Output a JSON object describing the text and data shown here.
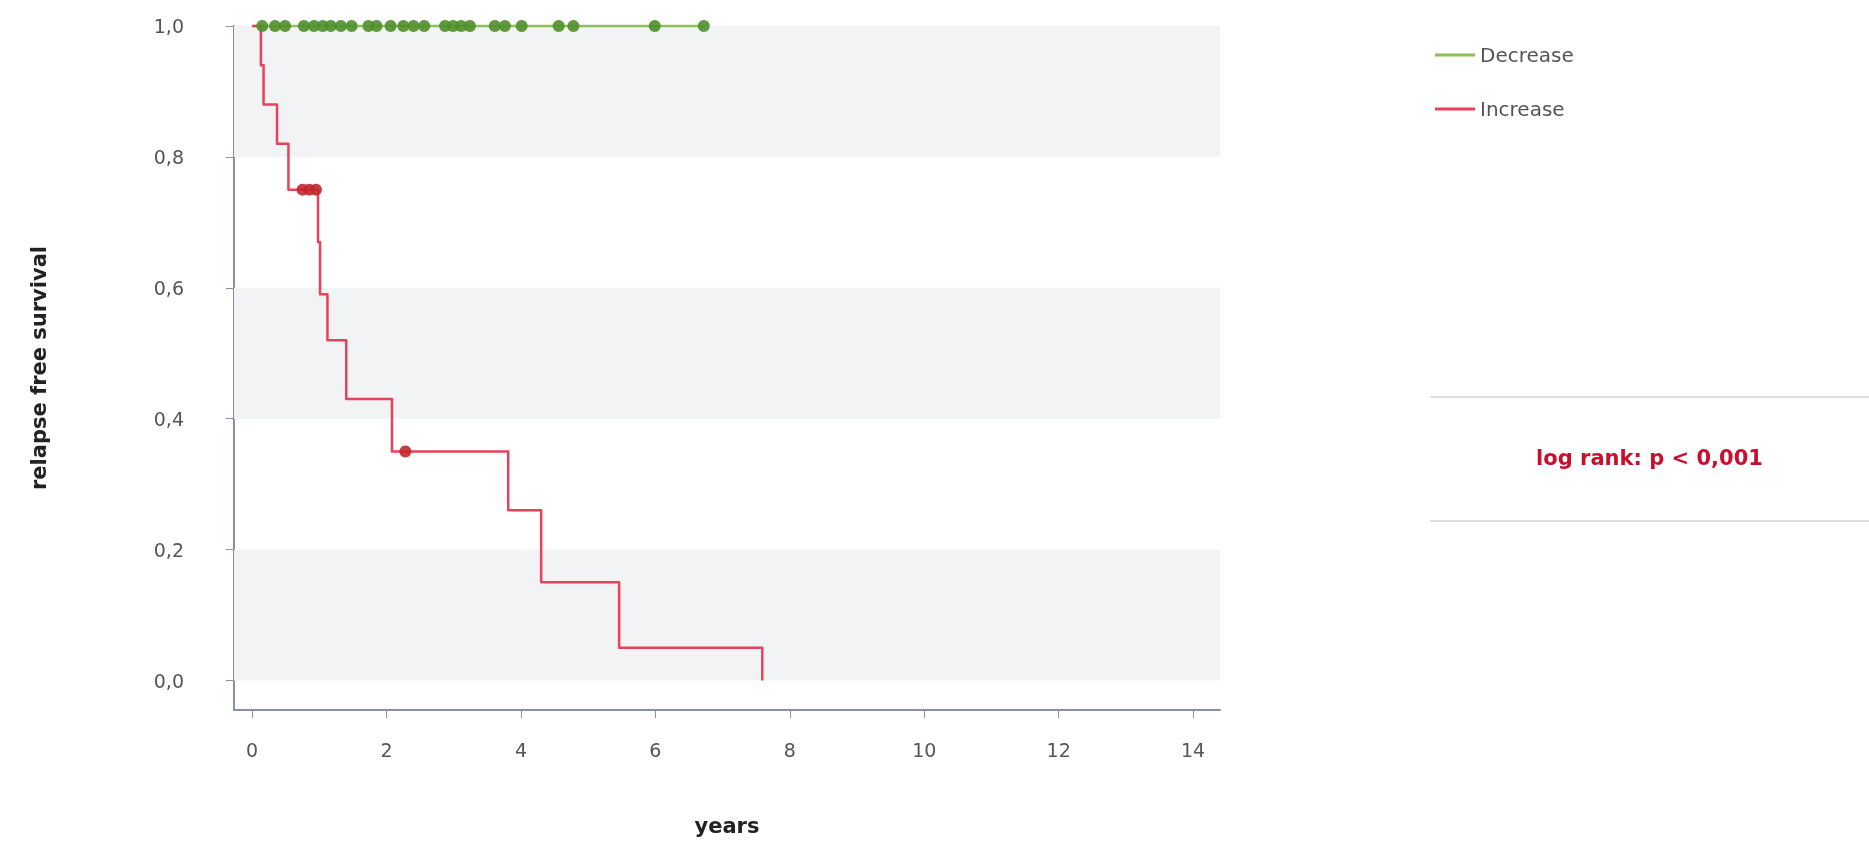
{
  "chart_data": {
    "type": "step",
    "xlabel": "years",
    "ylabel": "relapse free survival",
    "xlim": [
      -0.27,
      14.4
    ],
    "xticks": [
      0,
      2,
      4,
      6,
      8,
      10,
      12,
      14
    ],
    "ylim": [
      -0.045,
      1.0
    ],
    "yticks": [
      {
        "value": 0,
        "label": "0,0"
      },
      {
        "value": 0.2,
        "label": "0,2"
      },
      {
        "value": 0.4,
        "label": "0,4"
      },
      {
        "value": 0.6,
        "label": "0,6"
      },
      {
        "value": 0.8,
        "label": "0,8"
      },
      {
        "value": 1,
        "label": "1,0"
      }
    ],
    "grid": false,
    "legend": "top right",
    "bands": [
      {
        "axis": "y",
        "from": 0,
        "to": 0.2,
        "color": "#f2f3f5"
      },
      {
        "axis": "y",
        "from": 0.4,
        "to": 0.6,
        "color": "#f2f3f5"
      },
      {
        "axis": "y",
        "from": 0.8,
        "to": 1.0,
        "color": "#f2f3f5"
      }
    ],
    "annotations": [
      "log rank: p < 0,001"
    ],
    "series": [
      {
        "name": "Decrease",
        "color": "#8cc05a",
        "x": [
          0,
          6.72
        ],
        "values": [
          1,
          1
        ]
      },
      {
        "name": "Increase",
        "color": "#e8415a",
        "x": [
          0,
          0.13,
          0.17,
          0.37,
          0.54,
          0.98,
          1.01,
          1.12,
          1.4,
          2.08,
          3.81,
          4.3,
          5.46,
          7.59
        ],
        "values": [
          1,
          0.94,
          0.88,
          0.82,
          0.75,
          0.67,
          0.59,
          0.52,
          0.43,
          0.35,
          0.26,
          0.15,
          0.05,
          0
        ]
      },
      {
        "type": "scatter",
        "marker": "circle",
        "color": "#4f8f2a",
        "x": [
          0.15,
          0.34,
          0.49,
          0.77,
          0.92,
          1.05,
          1.17,
          1.32,
          1.48,
          1.73,
          1.85,
          2.06,
          2.25,
          2.4,
          2.56,
          2.87,
          2.99,
          3.11,
          3.24,
          3.61,
          3.76,
          4.01,
          4.56,
          4.78,
          5.99,
          6.72
        ],
        "values": [
          1,
          1,
          1,
          1,
          1,
          1,
          1,
          1,
          1,
          1,
          1,
          1,
          1,
          1,
          1,
          1,
          1,
          1,
          1,
          1,
          1,
          1,
          1,
          1,
          1,
          1
        ]
      },
      {
        "type": "scatter",
        "marker": "circle",
        "color": "#c0282d",
        "x": [
          0.75,
          0.85,
          0.95,
          2.28
        ],
        "values": [
          0.75,
          0.75,
          0.75,
          0.35
        ]
      }
    ]
  }
}
